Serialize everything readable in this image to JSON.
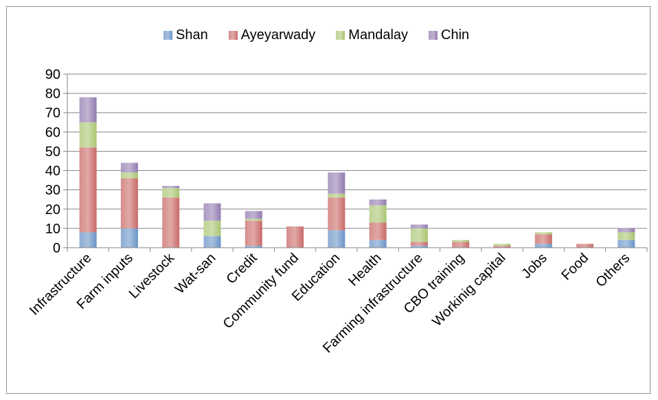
{
  "chart_data": {
    "type": "bar",
    "stacked": true,
    "title": "",
    "xlabel": "",
    "ylabel": "",
    "ylim": [
      0,
      90
    ],
    "yticks": [
      0,
      10,
      20,
      30,
      40,
      50,
      60,
      70,
      80,
      90
    ],
    "grid": true,
    "legend_position": "top",
    "categories": [
      "Infrastructure",
      "Farm inputs",
      "Livestock",
      "Wat-san",
      "Credit",
      "Community fund",
      "Education",
      "Health",
      "Farming infrastructure",
      "CBO training",
      "Workinig capital",
      "Jobs",
      "Food",
      "Others"
    ],
    "series": [
      {
        "name": "Shan",
        "color": "#4f81bd",
        "values": [
          8,
          10,
          0,
          6,
          1,
          0,
          9,
          4,
          1,
          0,
          0,
          2,
          0,
          4
        ]
      },
      {
        "name": "Ayeyarwady",
        "color": "#c0504d",
        "values": [
          44,
          26,
          26,
          0,
          13,
          11,
          17,
          9,
          2,
          3,
          1,
          5,
          2,
          0
        ]
      },
      {
        "name": "Mandalay",
        "color": "#9bbb59",
        "values": [
          13,
          3,
          5,
          8,
          1,
          0,
          2,
          9,
          7,
          1,
          1,
          1,
          0,
          4
        ]
      },
      {
        "name": "Chin",
        "color": "#8064a2",
        "values": [
          13,
          5,
          1,
          9,
          4,
          0,
          11,
          3,
          2,
          0,
          0,
          0,
          0,
          2
        ]
      }
    ]
  }
}
